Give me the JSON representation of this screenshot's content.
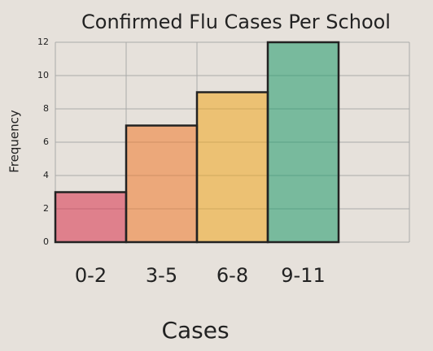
{
  "chart_data": {
    "type": "bar",
    "title": "Confirmed Flu Cases Per School",
    "x_label": "Cases",
    "y_label": "Frequency",
    "categories": [
      "0-2",
      "3-5",
      "6-8",
      "9-11"
    ],
    "values": [
      3,
      7,
      9,
      12
    ],
    "colors": [
      "#d8324a",
      "#f07a2a",
      "#f0a81e",
      "#1e9a6a"
    ],
    "ylim": [
      0,
      12
    ],
    "yticks": [
      0,
      2,
      4,
      6,
      8,
      10,
      12
    ],
    "grid": true
  }
}
